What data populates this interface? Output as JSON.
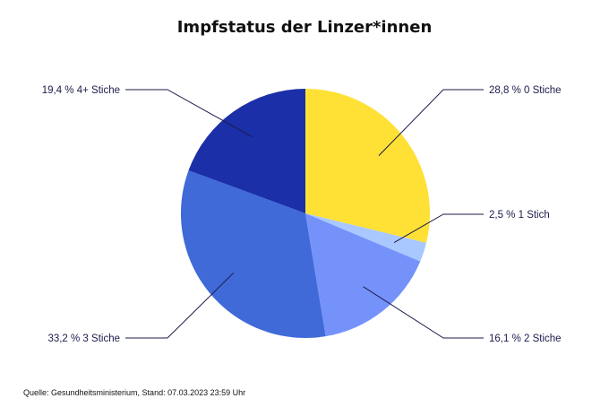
{
  "title": "Impfstatus der Linzer*innen",
  "source": "Quelle: Gesundheitsministerium, Stand: 07.03.2023 23:59 Uhr",
  "chart_data": {
    "type": "pie",
    "title": "Impfstatus der Linzer*innen",
    "start_angle_deg": 0,
    "direction": "clockwise",
    "slices": [
      {
        "label": "0 Stiche",
        "value": 28.8,
        "display": "28,8 %",
        "color": "#ffe135"
      },
      {
        "label": "1 Stich",
        "value": 2.5,
        "display": "2,5 %",
        "color": "#a9c8ff"
      },
      {
        "label": "2 Stiche",
        "value": 16.1,
        "display": "16,1 %",
        "color": "#7592fa"
      },
      {
        "label": "3 Stiche",
        "value": 33.2,
        "display": "33,2 %",
        "color": "#3f6ad8"
      },
      {
        "label": "4+ Stiche",
        "value": 19.4,
        "display": "19,4 %",
        "color": "#1b2fa8"
      }
    ]
  }
}
